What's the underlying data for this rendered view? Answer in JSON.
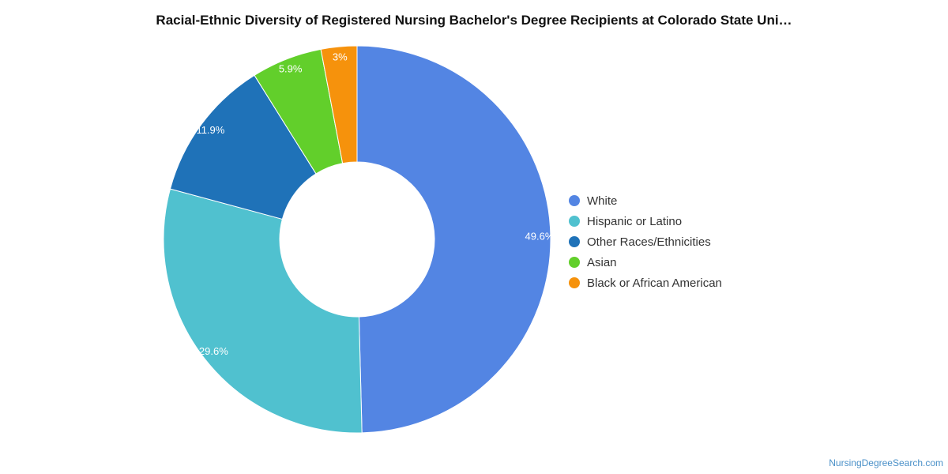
{
  "chart_data": {
    "type": "pie",
    "title": "Racial-Ethnic Diversity of Registered Nursing Bachelor's Degree Recipients at Colorado State Uni…",
    "donut": true,
    "legend_position": "right",
    "slices": [
      {
        "label": "White",
        "value": 49.6,
        "value_label": "49.6%",
        "color": "#5385e3"
      },
      {
        "label": "Hispanic or Latino",
        "value": 29.6,
        "value_label": "29.6%",
        "color": "#50c1cf"
      },
      {
        "label": "Other Races/Ethnicities",
        "value": 11.9,
        "value_label": "11.9%",
        "color": "#1f72b8"
      },
      {
        "label": "Asian",
        "value": 5.9,
        "value_label": "5.9%",
        "color": "#62cf2b"
      },
      {
        "label": "Black or African American",
        "value": 3,
        "value_label": "3%",
        "color": "#f6920c"
      }
    ]
  },
  "credit": "NursingDegreeSearch.com"
}
